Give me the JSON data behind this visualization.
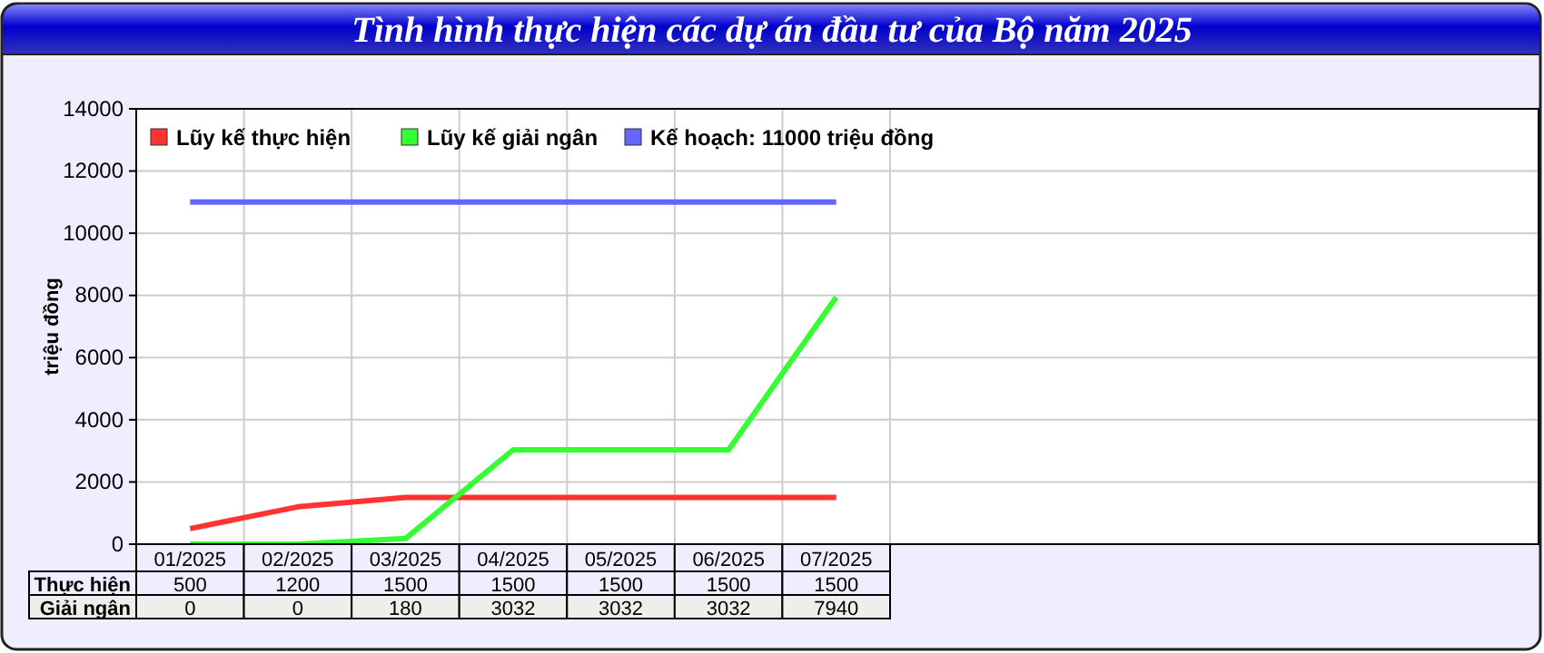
{
  "chart_data": {
    "type": "line",
    "title": "Tình hình thực hiện các dự án đầu tư của Bộ năm 2025",
    "ylabel": "triệu đồng",
    "categories": [
      "01/2025",
      "02/2025",
      "03/2025",
      "04/2025",
      "05/2025",
      "06/2025",
      "07/2025"
    ],
    "series": [
      {
        "name": "Lũy kế thực hiện",
        "color": "#ff3333",
        "values": [
          500,
          1200,
          1500,
          1500,
          1500,
          1500,
          1500
        ],
        "value_labels": [
          "500",
          "1200",
          "1500",
          "1500",
          "1500",
          "1500",
          "1500"
        ]
      },
      {
        "name": "Lũy kế giải ngân",
        "color": "#33ff33",
        "values": [
          0,
          0,
          180,
          3032,
          3032,
          3032,
          7940
        ],
        "value_labels": [
          "0",
          "0",
          "180",
          "3032",
          "3032",
          "3032",
          "7940"
        ]
      },
      {
        "name": "Kế hoạch: 11000 triệu đồng",
        "color": "#6666ff",
        "values": [
          11000,
          11000,
          11000,
          11000,
          11000,
          11000,
          11000
        ]
      }
    ],
    "annotations": [
      "Thực hiện",
      "Giải ngân"
    ],
    "ylim": [
      0,
      14000
    ],
    "yticks": [
      0,
      2000,
      4000,
      6000,
      8000,
      10000,
      12000,
      14000
    ],
    "grid": true,
    "legend": "top left",
    "marker": "none",
    "line_style": "solid"
  }
}
